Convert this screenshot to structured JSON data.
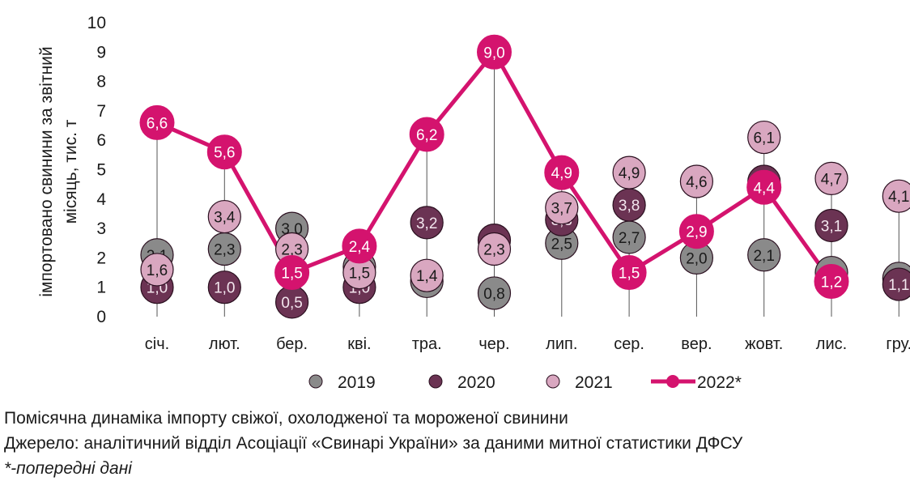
{
  "chart_data": {
    "type": "scatter",
    "ylabel_line1": "імпортовано свинини за звітний",
    "ylabel_line2": "місяць, тис. т",
    "categories": [
      "січ.",
      "лют.",
      "бер.",
      "кві.",
      "тра.",
      "чер.",
      "лип.",
      "сер.",
      "вер.",
      "жовт.",
      "лис.",
      "гру."
    ],
    "ylim": [
      0,
      10
    ],
    "yticks": [
      "0",
      "1",
      "2",
      "3",
      "4",
      "5",
      "6",
      "7",
      "8",
      "9",
      "10"
    ],
    "series": [
      {
        "name": "2019",
        "style": "bubble",
        "color": "#8a8a8a",
        "text_color": "#1a1a1a",
        "values": [
          2.1,
          2.3,
          3.0,
          1.7,
          1.2,
          0.8,
          2.5,
          2.7,
          2.0,
          2.1,
          1.5,
          1.3
        ],
        "labels": [
          "2,1",
          "2,3",
          "3,0",
          "1,7",
          "1,2",
          "0,8",
          "2,5",
          "2,7",
          "2,0",
          "2,1",
          "1,5",
          "1,3"
        ]
      },
      {
        "name": "2020",
        "style": "bubble",
        "color": "#6b3353",
        "text_color": "#f3e6ee",
        "values": [
          1.0,
          1.0,
          0.5,
          1.0,
          3.2,
          2.6,
          3.3,
          3.8,
          null,
          4.6,
          3.1,
          1.1
        ],
        "labels": [
          "1,0",
          "1,0",
          "0,5",
          "1,0",
          "3,2",
          "2,6",
          "3,3",
          "3,8",
          "",
          "4,6",
          "3,1",
          "1,1"
        ]
      },
      {
        "name": "2021",
        "style": "bubble",
        "color": "#d9a7c0",
        "text_color": "#1a1a1a",
        "values": [
          1.6,
          3.4,
          2.3,
          1.5,
          1.4,
          2.3,
          3.7,
          4.9,
          4.6,
          6.1,
          4.7,
          4.1
        ],
        "labels": [
          "1,6",
          "3,4",
          "2,3",
          "1,5",
          "1,4",
          "2,3",
          "3,7",
          "4,9",
          "4,6",
          "6,1",
          "4,7",
          "4,1"
        ]
      },
      {
        "name": "2022*",
        "style": "line",
        "color": "#d4136e",
        "text_color": "#ffffff",
        "values": [
          6.6,
          5.6,
          1.5,
          2.4,
          6.2,
          9.0,
          4.9,
          1.5,
          2.9,
          4.4,
          1.2,
          null
        ],
        "labels": [
          "6,6",
          "5,6",
          "1,5",
          "2,4",
          "6,2",
          "9,0",
          "4,9",
          "1,5",
          "2,9",
          "4,4",
          "1,2",
          ""
        ]
      }
    ],
    "legend": [
      "2019",
      "2020",
      "2021",
      "2022*"
    ],
    "legend_position": "bottom"
  },
  "caption": {
    "line1": "Помісячна динаміка імпорту свіжої, охолодженої та мороженої свинини",
    "line2": "Джерело: аналітичний відділ Асоціації «Свинарі України» за даними митної статистики ДФСУ",
    "line3": "*-попередні дані"
  }
}
